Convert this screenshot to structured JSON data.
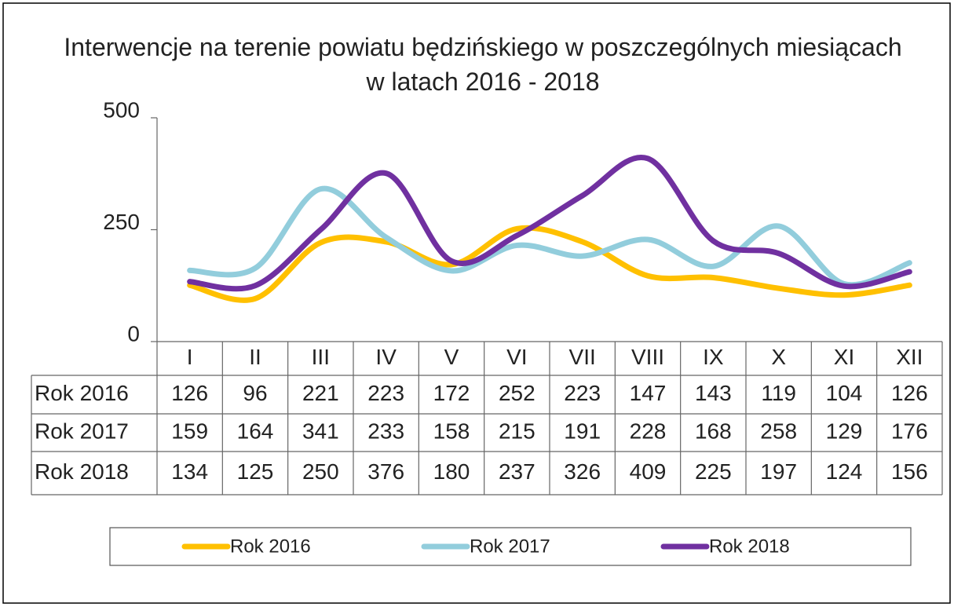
{
  "chart_data": {
    "type": "line",
    "title": "Interwencje na terenie powiatu będzińskiego w poszczególnych miesiącach w latach 2016 - 2018",
    "categories": [
      "I",
      "II",
      "III",
      "IV",
      "V",
      "VI",
      "VII",
      "VIII",
      "IX",
      "X",
      "XI",
      "XII"
    ],
    "series": [
      {
        "name": "Rok 2016",
        "color": "#ffc000",
        "values": [
          126,
          96,
          221,
          223,
          172,
          252,
          223,
          147,
          143,
          119,
          104,
          126
        ]
      },
      {
        "name": "Rok 2017",
        "color": "#92cddc",
        "values": [
          159,
          164,
          341,
          233,
          158,
          215,
          191,
          228,
          168,
          258,
          129,
          176
        ]
      },
      {
        "name": "Rok 2018",
        "color": "#7030a0",
        "values": [
          134,
          125,
          250,
          376,
          180,
          237,
          326,
          409,
          225,
          197,
          124,
          156
        ]
      }
    ],
    "ylim": [
      0,
      500
    ],
    "yticks": [
      0,
      250,
      500
    ],
    "smooth": true,
    "legend": "bottom"
  }
}
